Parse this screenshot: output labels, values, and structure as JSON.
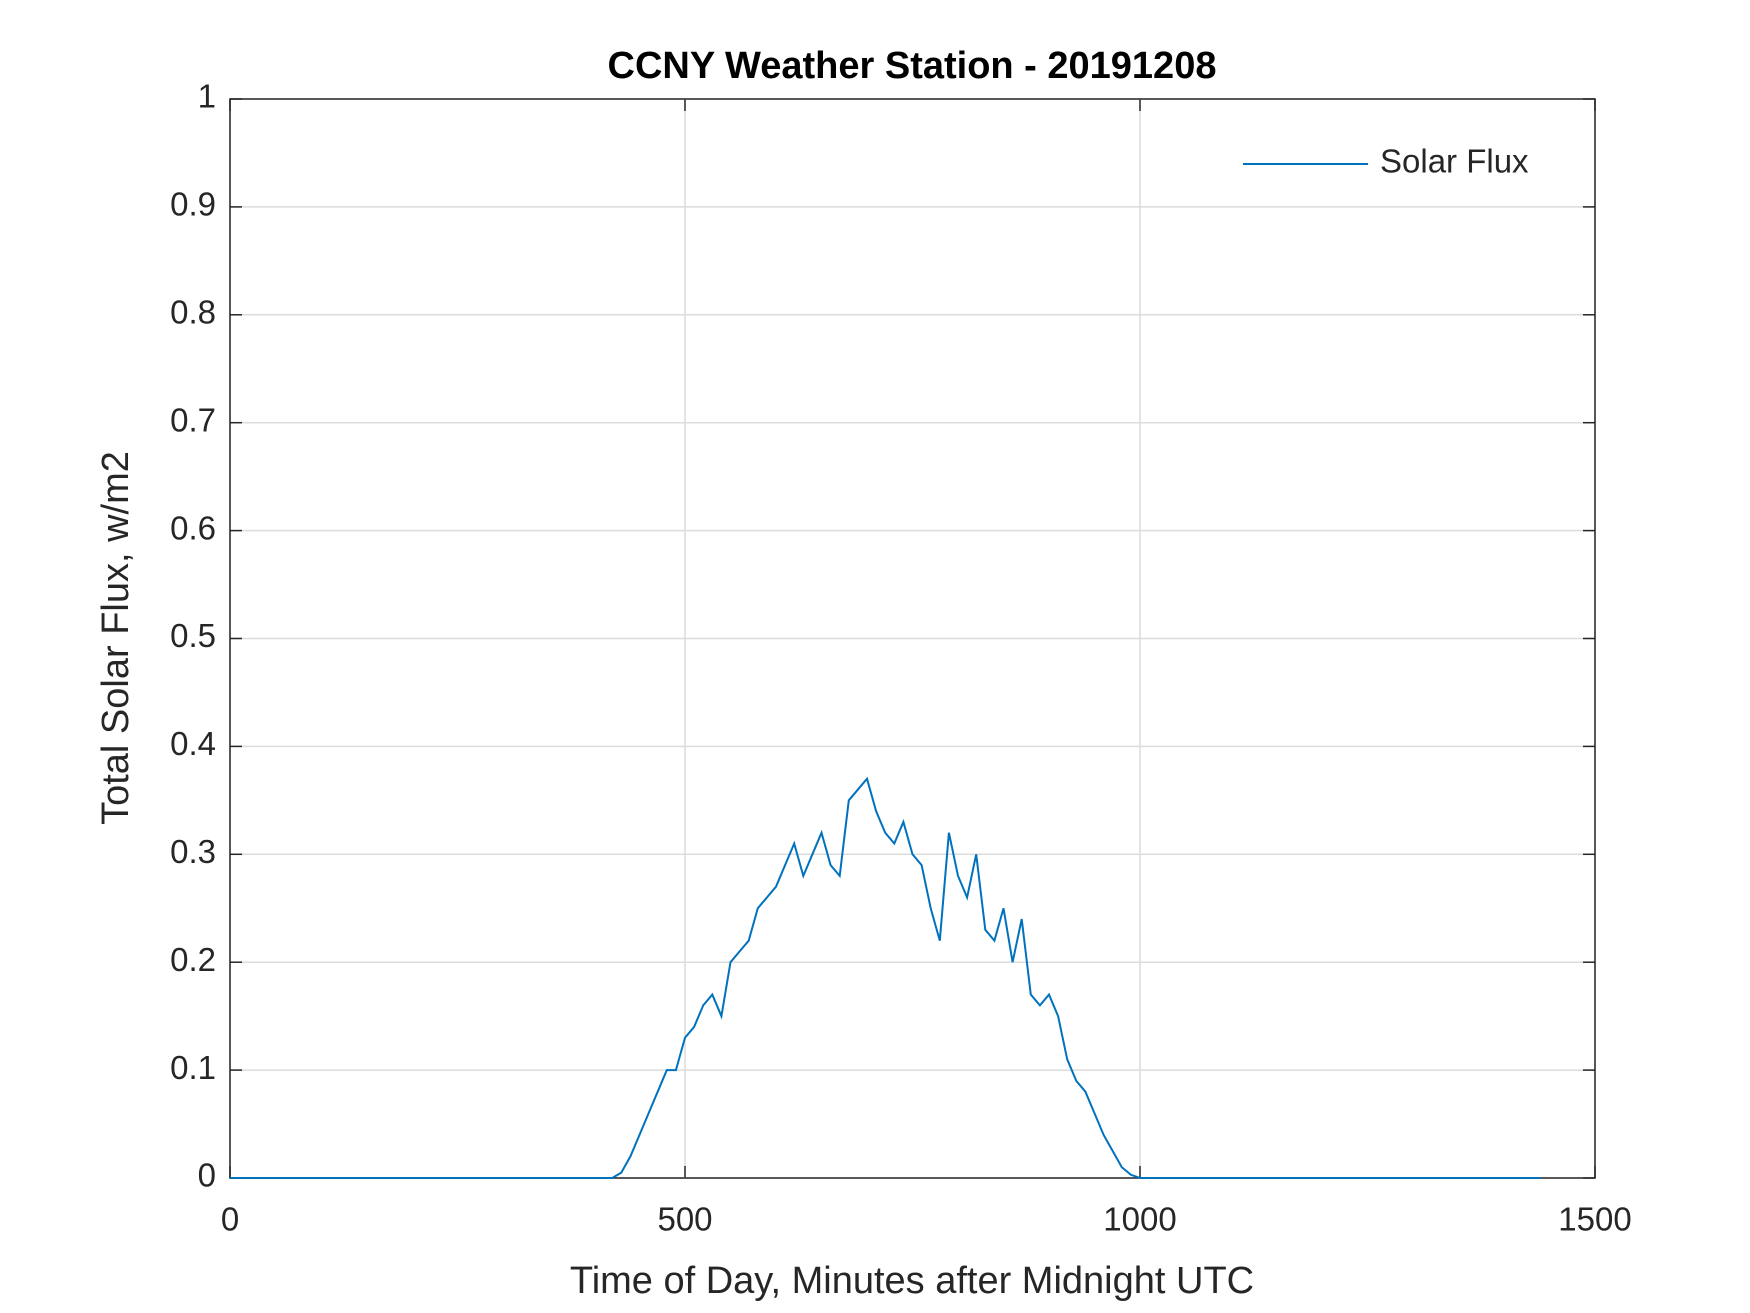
{
  "chart_data": {
    "type": "line",
    "title": "CCNY Weather Station - 20191208",
    "x_label": "Time of Day, Minutes after Midnight UTC",
    "y_label": "Total Solar Flux, w/m2",
    "x": [
      0,
      420,
      430,
      440,
      450,
      460,
      470,
      480,
      490,
      500,
      510,
      520,
      530,
      540,
      550,
      560,
      570,
      580,
      590,
      600,
      610,
      620,
      630,
      640,
      650,
      660,
      670,
      680,
      690,
      700,
      710,
      720,
      730,
      740,
      750,
      760,
      770,
      780,
      790,
      800,
      810,
      820,
      830,
      840,
      850,
      860,
      870,
      880,
      890,
      900,
      910,
      920,
      930,
      940,
      950,
      960,
      970,
      980,
      990,
      1000,
      1440
    ],
    "series": [
      {
        "name": "Solar Flux",
        "color": "#0072bd",
        "values": [
          0,
          0,
          0.005,
          0.02,
          0.04,
          0.06,
          0.08,
          0.1,
          0.1,
          0.13,
          0.14,
          0.16,
          0.17,
          0.15,
          0.2,
          0.21,
          0.22,
          0.25,
          0.26,
          0.27,
          0.29,
          0.31,
          0.28,
          0.3,
          0.32,
          0.29,
          0.28,
          0.35,
          0.36,
          0.37,
          0.34,
          0.32,
          0.31,
          0.33,
          0.3,
          0.29,
          0.25,
          0.22,
          0.32,
          0.28,
          0.26,
          0.3,
          0.23,
          0.22,
          0.25,
          0.2,
          0.24,
          0.17,
          0.16,
          0.17,
          0.15,
          0.11,
          0.09,
          0.08,
          0.06,
          0.04,
          0.025,
          0.01,
          0.003,
          0,
          0
        ]
      }
    ],
    "xlim": [
      0,
      1500
    ],
    "xticks": [
      0,
      500,
      1000,
      1500
    ],
    "ylim": [
      0,
      1
    ],
    "yticks": [
      0,
      0.1,
      0.2,
      0.3,
      0.4,
      0.5,
      0.6,
      0.7,
      0.8,
      0.9,
      1
    ],
    "grid": true,
    "legend": "top-right"
  }
}
